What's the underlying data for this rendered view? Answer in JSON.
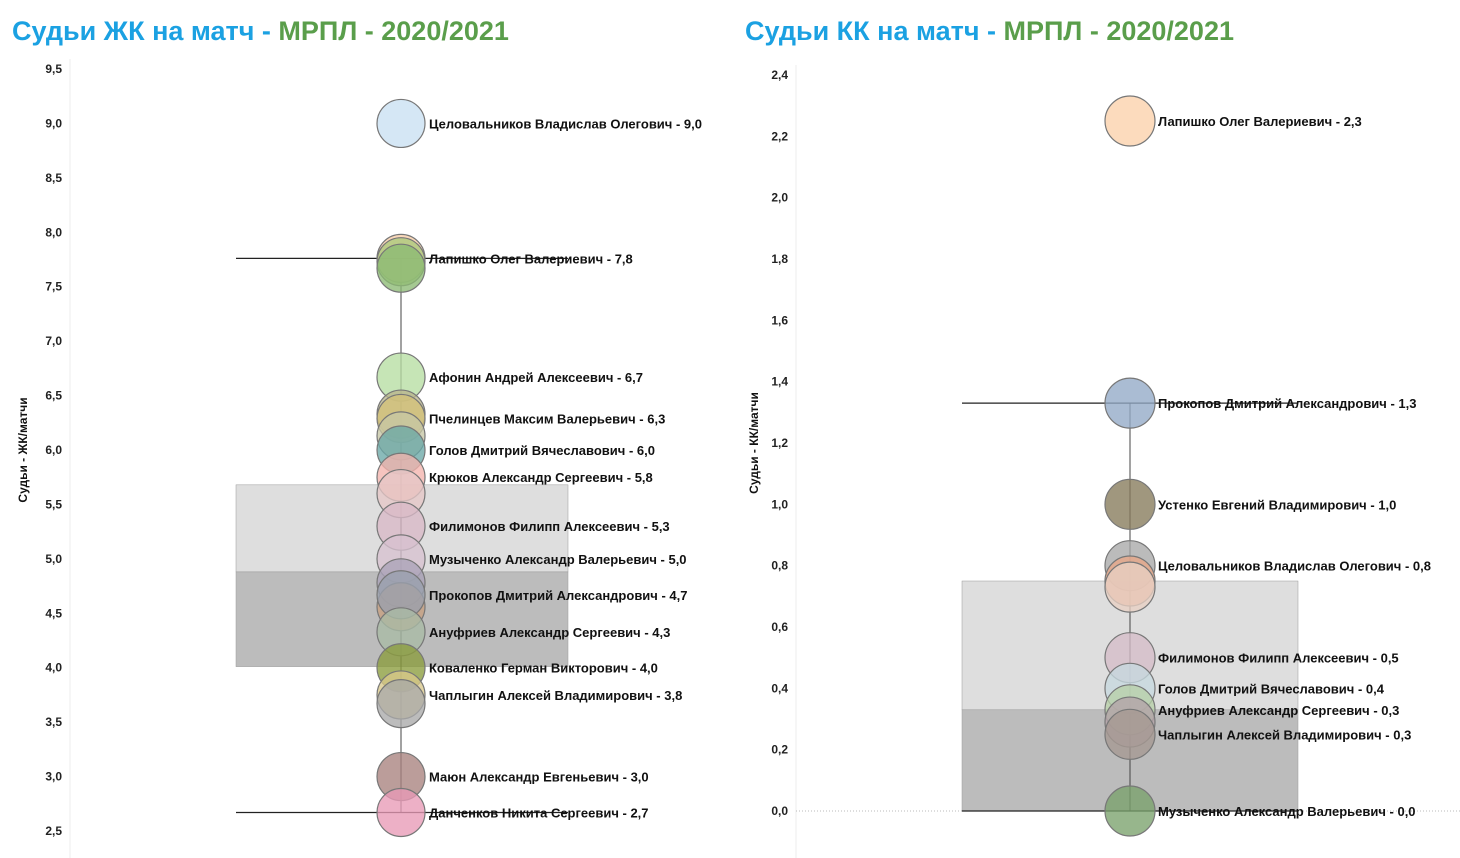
{
  "charts": [
    {
      "id": "left",
      "title_part1": "Судьи ЖК на матч - ",
      "title_part2": "МРПЛ - 2020/2021",
      "chart_data": {
        "type": "scatter",
        "title": "Судьи ЖК на матч - МРПЛ - 2020/2021",
        "ylabel": "Судьи - ЖК/матчи",
        "ylim": [
          2.5,
          9.5
        ],
        "yticks": [
          2.5,
          3.0,
          3.5,
          4.0,
          4.5,
          5.0,
          5.5,
          6.0,
          6.5,
          7.0,
          7.5,
          8.0,
          8.5,
          9.0,
          9.5
        ],
        "band_upper": [
          4.88,
          5.68
        ],
        "band_lower": [
          4.01,
          4.88
        ],
        "whisker": [
          2.67,
          7.76
        ],
        "points": [
          {
            "name": "Целовальников Владислав Олегович",
            "value": 9.0,
            "label": "Целовальников Владислав Олегович - 9,0",
            "color": "#c9e0f2"
          },
          {
            "name": "Лапишко Олег Валериевич",
            "value": 7.76,
            "label": "Лапишко Олег Валериевич - 7,8",
            "color": "#f8cda6"
          },
          {
            "name": "",
            "value": 7.73,
            "label": "",
            "color": "#a9c87a"
          },
          {
            "name": "",
            "value": 7.67,
            "label": "",
            "color": "#8cba73"
          },
          {
            "name": "Афонин Андрей Алексеевич",
            "value": 6.67,
            "label": "Афонин Андрей Алексеевич - 6,7",
            "color": "#b6dea2"
          },
          {
            "name": "",
            "value": 6.33,
            "label": "",
            "color": "#b9b58c"
          },
          {
            "name": "Пчелинцев Максим Валерьевич",
            "value": 6.29,
            "label": "Пчелинцев Максим Валерьевич - 6,3",
            "color": "#d3c178"
          },
          {
            "name": "",
            "value": 6.13,
            "label": "",
            "color": "#c7c7a5"
          },
          {
            "name": "Голов Дмитрий Вячеславович",
            "value": 6.0,
            "label": "Голов Дмитрий Вячеславович - 6,0",
            "color": "#6aa8a6"
          },
          {
            "name": "Крюков Александр Сергеевич",
            "value": 5.75,
            "label": "Крюков Александр Сергеевич - 5,8",
            "color": "#f4b3ad"
          },
          {
            "name": "",
            "value": 5.6,
            "label": "",
            "color": "#e5c6c6"
          },
          {
            "name": "Филимонов Филипп Алексеевич",
            "value": 5.3,
            "label": "Филимонов Филипп Алексеевич - 5,3",
            "color": "#d9b9c6"
          },
          {
            "name": "Музыченко Александр Валерьевич",
            "value": 5.0,
            "label": "Музыченко Александр Валерьевич - 5,0",
            "color": "#d7c1d0"
          },
          {
            "name": "",
            "value": 4.78,
            "label": "",
            "color": "#aaa3b8"
          },
          {
            "name": "",
            "value": 4.56,
            "label": "",
            "color": "#c8a080"
          },
          {
            "name": "Прокопов Дмитрий Александрович",
            "value": 4.67,
            "label": "Прокопов Дмитрий Александрович - 4,7",
            "color": "#9aa0ad"
          },
          {
            "name": "Ануфриев Александр Сергеевич",
            "value": 4.33,
            "label": "Ануфриев Александр Сергеевич - 4,3",
            "color": "#a9bba5"
          },
          {
            "name": "Коваленко Герман Викторович",
            "value": 4.0,
            "label": "Коваленко Герман Викторович - 4,0",
            "color": "#8a9c3c"
          },
          {
            "name": "Чаплыгин Алексей Владимирович",
            "value": 3.75,
            "label": "Чаплыгин Алексей Владимирович - 3,8",
            "color": "#d8c88b"
          },
          {
            "name": "",
            "value": 3.67,
            "label": "",
            "color": "#a9a9a9"
          },
          {
            "name": "Маюн Александр Евгеньевич",
            "value": 3.0,
            "label": "Маюн Александр Евгеньевич - 3,0",
            "color": "#a8827d"
          },
          {
            "name": "Данченков Никита Сергеевич",
            "value": 2.67,
            "label": "Данченков Никита Сергеевич - 2,7",
            "color": "#e89ab6"
          }
        ]
      }
    },
    {
      "id": "right",
      "title_part1": "Судьи КК на матч - ",
      "title_part2": "МРПЛ - 2020/2021",
      "chart_data": {
        "type": "scatter",
        "title": "Судьи КК на матч - МРПЛ - 2020/2021",
        "ylabel": "Судьи - КК/матчи",
        "ylim": [
          0.0,
          2.4
        ],
        "yticks": [
          0.0,
          0.2,
          0.4,
          0.6,
          0.8,
          1.0,
          1.2,
          1.4,
          1.6,
          1.8,
          2.0,
          2.2,
          2.4
        ],
        "zero_line": true,
        "band_upper": [
          0.33,
          0.75
        ],
        "band_lower": [
          0.0,
          0.33
        ],
        "whisker": [
          0.0,
          1.33
        ],
        "points": [
          {
            "name": "Лапишко Олег Валериевич",
            "value": 2.25,
            "label": "Лапишко Олег Валериевич - 2,3",
            "color": "#fbd1ab"
          },
          {
            "name": "Прокопов Дмитрий Александрович",
            "value": 1.33,
            "label": "Прокопов Дмитрий Александрович - 1,3",
            "color": "#92a9c6"
          },
          {
            "name": "Устенко Евгений Владимирович",
            "value": 1.0,
            "label": "Устенко Евгений Владимирович - 1,0",
            "color": "#857a5a"
          },
          {
            "name": "Целовальников Владислав Олегович",
            "value": 0.8,
            "label": "Целовальников Владислав Олегович - 0,8",
            "color": "#a8a8a8"
          },
          {
            "name": "",
            "value": 0.75,
            "label": "",
            "color": "#e9a687"
          },
          {
            "name": "",
            "value": 0.73,
            "label": "",
            "color": "#e8cfc3"
          },
          {
            "name": "Филимонов Филипп Алексеевич",
            "value": 0.5,
            "label": "Филимонов Филипп Алексеевич - 0,5",
            "color": "#d5bdc8"
          },
          {
            "name": "Голов Дмитрий Вячеславович",
            "value": 0.4,
            "label": "Голов Дмитрий Вячеславович - 0,4",
            "color": "#c7d9df"
          },
          {
            "name": "Ануфриев Александр Сергеевич",
            "value": 0.33,
            "label": "Ануфриев Александр Сергеевич - 0,3",
            "color": "#b7cfa8"
          },
          {
            "name": "",
            "value": 0.29,
            "label": "",
            "color": "#b3a3a8"
          },
          {
            "name": "Чаплыгин Алексей Владимирович",
            "value": 0.25,
            "label": "Чаплыгин Алексей Владимирович - 0,3",
            "color": "#a59892"
          },
          {
            "name": "Музыченко Александр Валерьевич",
            "value": 0.0,
            "label": "Музыченко Александр Валерьевич - 0,0",
            "color": "#7aa16b"
          }
        ]
      }
    }
  ]
}
